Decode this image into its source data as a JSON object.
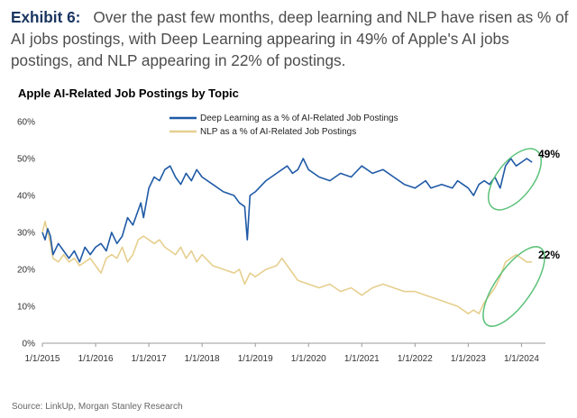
{
  "headline": {
    "exhibit": "Exhibit 6:",
    "text": "Over the past few months, deep learning and NLP have risen as % of AI jobs postings, with Deep Learning appearing in 49% of Apple's AI jobs postings, and NLP appearing in 22% of postings."
  },
  "source": "Source: LinkUp, Morgan Stanley Research",
  "colors": {
    "deep_learning": "#1f5aa6",
    "nlp": "#e6cf8e",
    "highlight": "#5cc27a"
  },
  "chart_data": {
    "type": "line",
    "title": "Apple AI-Related Job Postings by Topic",
    "xlabel": "",
    "ylabel": "",
    "ylim": [
      0,
      60
    ],
    "y_ticks": [
      "0%",
      "10%",
      "20%",
      "30%",
      "40%",
      "50%",
      "60%"
    ],
    "x_ticks": [
      "1/1/2015",
      "1/1/2016",
      "1/1/2017",
      "1/1/2018",
      "1/1/2019",
      "1/1/2020",
      "1/1/2021",
      "1/1/2022",
      "1/1/2023",
      "1/1/2024"
    ],
    "x_range": [
      2015.0,
      2024.45
    ],
    "legend_position": "top",
    "series": [
      {
        "name": "Deep Learning as a % of AI-Related Job Postings",
        "end_label": "49%",
        "points": [
          [
            2015.0,
            30
          ],
          [
            2015.05,
            28
          ],
          [
            2015.1,
            31
          ],
          [
            2015.15,
            29
          ],
          [
            2015.2,
            24
          ],
          [
            2015.3,
            27
          ],
          [
            2015.4,
            25
          ],
          [
            2015.5,
            23
          ],
          [
            2015.6,
            25
          ],
          [
            2015.7,
            22
          ],
          [
            2015.8,
            26
          ],
          [
            2015.9,
            24
          ],
          [
            2016.0,
            26
          ],
          [
            2016.1,
            27
          ],
          [
            2016.2,
            25
          ],
          [
            2016.3,
            30
          ],
          [
            2016.4,
            27
          ],
          [
            2016.5,
            29
          ],
          [
            2016.6,
            34
          ],
          [
            2016.7,
            32
          ],
          [
            2016.8,
            36
          ],
          [
            2016.85,
            38
          ],
          [
            2016.9,
            34
          ],
          [
            2017.0,
            42
          ],
          [
            2017.1,
            45
          ],
          [
            2017.2,
            44
          ],
          [
            2017.3,
            47
          ],
          [
            2017.4,
            48
          ],
          [
            2017.5,
            45
          ],
          [
            2017.6,
            43
          ],
          [
            2017.7,
            46
          ],
          [
            2017.8,
            44
          ],
          [
            2017.9,
            47
          ],
          [
            2018.0,
            45
          ],
          [
            2018.2,
            43
          ],
          [
            2018.4,
            41
          ],
          [
            2018.6,
            40
          ],
          [
            2018.7,
            38
          ],
          [
            2018.8,
            37
          ],
          [
            2018.85,
            28
          ],
          [
            2018.9,
            40
          ],
          [
            2019.0,
            41
          ],
          [
            2019.2,
            44
          ],
          [
            2019.4,
            46
          ],
          [
            2019.6,
            48
          ],
          [
            2019.7,
            46
          ],
          [
            2019.8,
            47
          ],
          [
            2019.9,
            50
          ],
          [
            2020.0,
            47
          ],
          [
            2020.2,
            45
          ],
          [
            2020.4,
            44
          ],
          [
            2020.6,
            46
          ],
          [
            2020.8,
            45
          ],
          [
            2021.0,
            48
          ],
          [
            2021.2,
            46
          ],
          [
            2021.4,
            47
          ],
          [
            2021.6,
            45
          ],
          [
            2021.8,
            43
          ],
          [
            2022.0,
            42
          ],
          [
            2022.2,
            44
          ],
          [
            2022.3,
            42
          ],
          [
            2022.5,
            43
          ],
          [
            2022.7,
            42
          ],
          [
            2022.8,
            44
          ],
          [
            2022.9,
            43
          ],
          [
            2023.0,
            42
          ],
          [
            2023.1,
            40
          ],
          [
            2023.2,
            43
          ],
          [
            2023.3,
            44
          ],
          [
            2023.4,
            43
          ],
          [
            2023.5,
            45
          ],
          [
            2023.6,
            42
          ],
          [
            2023.7,
            48
          ],
          [
            2023.8,
            50
          ],
          [
            2023.9,
            48
          ],
          [
            2024.0,
            49
          ],
          [
            2024.1,
            50
          ],
          [
            2024.2,
            49
          ]
        ]
      },
      {
        "name": "NLP as a % of AI-Related Job Postings",
        "end_label": "22%",
        "points": [
          [
            2015.0,
            30
          ],
          [
            2015.05,
            33
          ],
          [
            2015.1,
            30
          ],
          [
            2015.15,
            27
          ],
          [
            2015.2,
            23
          ],
          [
            2015.3,
            22
          ],
          [
            2015.4,
            24
          ],
          [
            2015.5,
            22
          ],
          [
            2015.6,
            23
          ],
          [
            2015.7,
            21
          ],
          [
            2015.8,
            22
          ],
          [
            2015.9,
            23
          ],
          [
            2016.0,
            21
          ],
          [
            2016.1,
            19
          ],
          [
            2016.2,
            23
          ],
          [
            2016.3,
            24
          ],
          [
            2016.4,
            23
          ],
          [
            2016.5,
            26
          ],
          [
            2016.6,
            22
          ],
          [
            2016.7,
            24
          ],
          [
            2016.8,
            28
          ],
          [
            2016.9,
            29
          ],
          [
            2017.0,
            28
          ],
          [
            2017.1,
            27
          ],
          [
            2017.2,
            28
          ],
          [
            2017.3,
            26
          ],
          [
            2017.4,
            25
          ],
          [
            2017.5,
            24
          ],
          [
            2017.6,
            26
          ],
          [
            2017.7,
            23
          ],
          [
            2017.8,
            25
          ],
          [
            2017.9,
            22
          ],
          [
            2018.0,
            24
          ],
          [
            2018.2,
            21
          ],
          [
            2018.4,
            20
          ],
          [
            2018.6,
            19
          ],
          [
            2018.7,
            20
          ],
          [
            2018.8,
            16
          ],
          [
            2018.9,
            19
          ],
          [
            2019.0,
            18
          ],
          [
            2019.2,
            20
          ],
          [
            2019.4,
            21
          ],
          [
            2019.5,
            23
          ],
          [
            2019.6,
            21
          ],
          [
            2019.8,
            17
          ],
          [
            2020.0,
            16
          ],
          [
            2020.2,
            15
          ],
          [
            2020.4,
            16
          ],
          [
            2020.6,
            14
          ],
          [
            2020.8,
            15
          ],
          [
            2021.0,
            13
          ],
          [
            2021.2,
            15
          ],
          [
            2021.4,
            16
          ],
          [
            2021.6,
            15
          ],
          [
            2021.8,
            14
          ],
          [
            2022.0,
            14
          ],
          [
            2022.2,
            13
          ],
          [
            2022.4,
            12
          ],
          [
            2022.6,
            11
          ],
          [
            2022.8,
            10
          ],
          [
            2023.0,
            8
          ],
          [
            2023.1,
            9
          ],
          [
            2023.2,
            8
          ],
          [
            2023.3,
            11
          ],
          [
            2023.4,
            13
          ],
          [
            2023.5,
            15
          ],
          [
            2023.6,
            18
          ],
          [
            2023.7,
            22
          ],
          [
            2023.8,
            23
          ],
          [
            2023.9,
            24
          ],
          [
            2024.0,
            23
          ],
          [
            2024.1,
            22
          ],
          [
            2024.2,
            22
          ]
        ]
      }
    ]
  }
}
